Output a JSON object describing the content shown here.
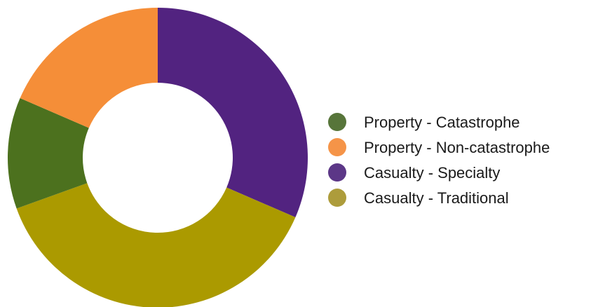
{
  "chart_data": {
    "type": "pie",
    "variant": "donut",
    "title": "",
    "legend_position": "right",
    "series": [
      {
        "name": "Property - Catastrophe",
        "value": 12.0,
        "color": "#4c711e",
        "legend_color": "#57753a"
      },
      {
        "name": "Property - Non-catastrophe",
        "value": 18.5,
        "color": "#f58e38",
        "legend_color": "#f59448"
      },
      {
        "name": "Casualty - Specialty",
        "value": 31.5,
        "color": "#522380",
        "legend_color": "#5c3787"
      },
      {
        "name": "Casualty - Traditional",
        "value": 38.0,
        "color": "#ab9a00",
        "legend_color": "#ad9c3b"
      }
    ],
    "start_angle_deg": 0,
    "direction": "clockwise-from-top, reverse legend order"
  }
}
